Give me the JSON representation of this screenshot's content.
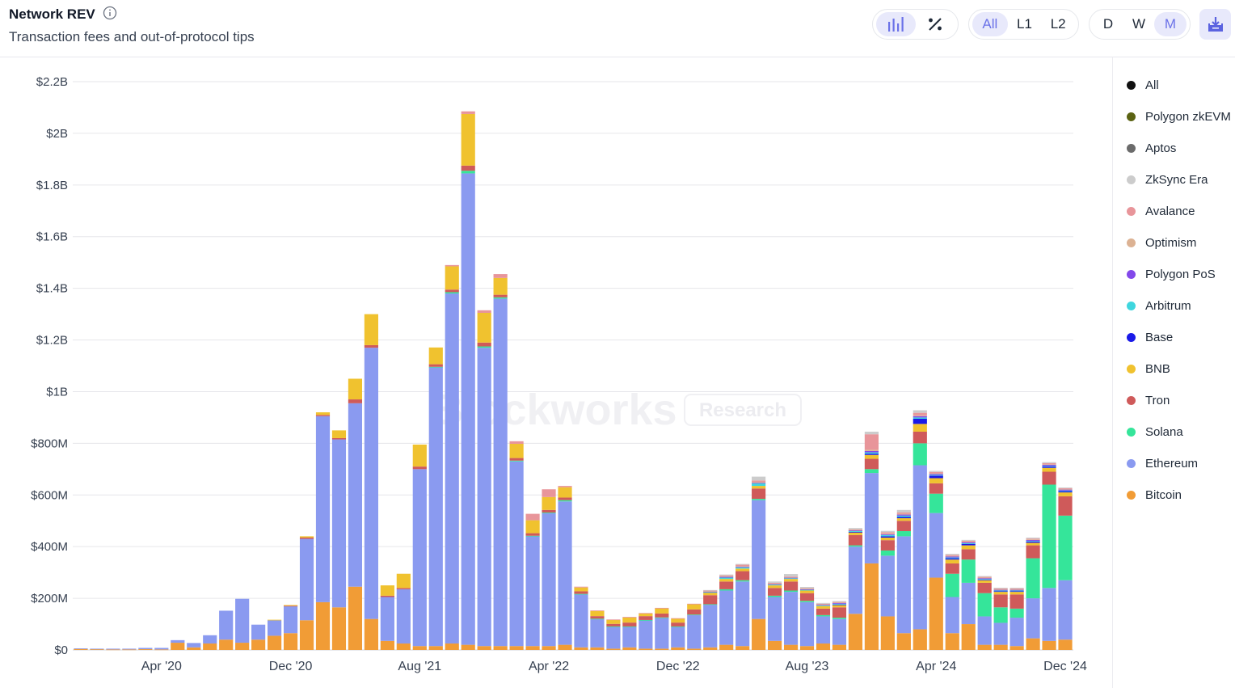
{
  "header": {
    "title": "Network REV",
    "subtitle": "Transaction fees and out-of-protocol tips"
  },
  "toolbar": {
    "chart_type_buttons": [
      {
        "icon": "bar-chart-icon",
        "active": true
      },
      {
        "icon": "percent-icon",
        "active": false
      }
    ],
    "layer_buttons": [
      {
        "label": "All",
        "active": true
      },
      {
        "label": "L1",
        "active": false
      },
      {
        "label": "L2",
        "active": false
      }
    ],
    "interval_buttons": [
      {
        "label": "D",
        "active": false
      },
      {
        "label": "W",
        "active": false
      },
      {
        "label": "M",
        "active": true
      }
    ],
    "download_icon": "download-icon"
  },
  "watermark": {
    "brand": "Blockworks",
    "tag": "Research"
  },
  "legend": [
    {
      "label": "All",
      "color": "#111111"
    },
    {
      "label": "Polygon zkEVM",
      "color": "#5b6313"
    },
    {
      "label": "Aptos",
      "color": "#6b6b6b"
    },
    {
      "label": "ZkSync Era",
      "color": "#cccccc"
    },
    {
      "label": "Avalance",
      "color": "#e8959a"
    },
    {
      "label": "Optimism",
      "color": "#dcb293"
    },
    {
      "label": "Polygon PoS",
      "color": "#8349ea"
    },
    {
      "label": "Arbitrum",
      "color": "#3fd6de"
    },
    {
      "label": "Base",
      "color": "#1a1ae8"
    },
    {
      "label": "BNB",
      "color": "#f0c22f"
    },
    {
      "label": "Tron",
      "color": "#cf5a5a"
    },
    {
      "label": "Solana",
      "color": "#35e59a"
    },
    {
      "label": "Ethereum",
      "color": "#8a9af0"
    },
    {
      "label": "Bitcoin",
      "color": "#f19c36"
    }
  ],
  "chart_data": {
    "type": "bar",
    "stacked": true,
    "ylim": [
      0,
      2.2
    ],
    "y_unit": "billion USD",
    "y_ticks": [
      "$0",
      "$200M",
      "$400M",
      "$600M",
      "$800M",
      "$1B",
      "$1.2B",
      "$1.4B",
      "$1.6B",
      "$1.8B",
      "$2B",
      "$2.2B"
    ],
    "x_ticks": [
      {
        "label": "Apr '20",
        "index": 5.5
      },
      {
        "label": "Dec '20",
        "index": 13.5
      },
      {
        "label": "Aug '21",
        "index": 21.5
      },
      {
        "label": "Apr '22",
        "index": 29.5
      },
      {
        "label": "Dec '22",
        "index": 37.5
      },
      {
        "label": "Aug '23",
        "index": 45.5
      },
      {
        "label": "Apr '24",
        "index": 53.5
      },
      {
        "label": "Dec '24",
        "index": 61.5
      }
    ],
    "grid": true,
    "legend_position": "right",
    "series": [
      {
        "name": "Bitcoin",
        "color": "#f19c36",
        "values": [
          0.005,
          0.003,
          0.002,
          0.002,
          0.003,
          0.002,
          0.028,
          0.01,
          0.025,
          0.04,
          0.028,
          0.04,
          0.055,
          0.065,
          0.115,
          0.185,
          0.165,
          0.245,
          0.12,
          0.035,
          0.025,
          0.015,
          0.015,
          0.025,
          0.02,
          0.015,
          0.015,
          0.015,
          0.015,
          0.015,
          0.02,
          0.01,
          0.01,
          0.005,
          0.01,
          0.005,
          0.005,
          0.01,
          0.005,
          0.01,
          0.02,
          0.015,
          0.12,
          0.035,
          0.02,
          0.015,
          0.025,
          0.02,
          0.14,
          0.335,
          0.13,
          0.065,
          0.08,
          0.28,
          0.065,
          0.1,
          0.02,
          0.02,
          0.015,
          0.045,
          0.035,
          0.04
        ]
      },
      {
        "name": "Ethereum",
        "color": "#8a9af0",
        "values": [
          0.001,
          0.002,
          0.003,
          0.003,
          0.005,
          0.006,
          0.01,
          0.017,
          0.032,
          0.112,
          0.17,
          0.058,
          0.06,
          0.105,
          0.315,
          0.72,
          0.65,
          0.71,
          1.05,
          0.17,
          0.21,
          0.685,
          1.08,
          1.355,
          1.825,
          1.155,
          1.345,
          0.715,
          0.425,
          0.515,
          0.555,
          0.205,
          0.11,
          0.085,
          0.08,
          0.11,
          0.12,
          0.08,
          0.13,
          0.165,
          0.21,
          0.25,
          0.46,
          0.17,
          0.205,
          0.17,
          0.105,
          0.1,
          0.26,
          0.35,
          0.235,
          0.375,
          0.635,
          0.25,
          0.14,
          0.16,
          0.11,
          0.085,
          0.11,
          0.155,
          0.205,
          0.23
        ]
      },
      {
        "name": "Solana",
        "color": "#35e59a",
        "values": [
          0,
          0,
          0,
          0,
          0,
          0,
          0,
          0,
          0,
          0,
          0,
          0,
          0,
          0,
          0,
          0,
          0,
          0,
          0,
          0,
          0,
          0,
          0.001,
          0.005,
          0.01,
          0.005,
          0.005,
          0.003,
          0.002,
          0.002,
          0.005,
          0.002,
          0.001,
          0.001,
          0.001,
          0.001,
          0.001,
          0.001,
          0.002,
          0.002,
          0.005,
          0.005,
          0.005,
          0.005,
          0.005,
          0.005,
          0.005,
          0.005,
          0.005,
          0.015,
          0.02,
          0.02,
          0.085,
          0.075,
          0.09,
          0.09,
          0.09,
          0.06,
          0.035,
          0.155,
          0.4,
          0.25
        ]
      },
      {
        "name": "Tron",
        "color": "#cf5a5a",
        "values": [
          0,
          0,
          0,
          0,
          0,
          0,
          0,
          0,
          0,
          0,
          0,
          0,
          0,
          0.001,
          0.005,
          0.005,
          0.005,
          0.015,
          0.01,
          0.005,
          0.005,
          0.01,
          0.01,
          0.01,
          0.02,
          0.015,
          0.01,
          0.01,
          0.01,
          0.01,
          0.01,
          0.01,
          0.01,
          0.01,
          0.015,
          0.015,
          0.015,
          0.015,
          0.02,
          0.035,
          0.03,
          0.035,
          0.04,
          0.03,
          0.035,
          0.03,
          0.025,
          0.04,
          0.04,
          0.04,
          0.04,
          0.04,
          0.045,
          0.04,
          0.04,
          0.04,
          0.04,
          0.05,
          0.055,
          0.05,
          0.05,
          0.075
        ]
      },
      {
        "name": "BNB",
        "color": "#f0c22f",
        "values": [
          0,
          0,
          0,
          0,
          0,
          0,
          0,
          0,
          0,
          0,
          0,
          0,
          0.002,
          0.003,
          0.005,
          0.01,
          0.03,
          0.08,
          0.12,
          0.04,
          0.055,
          0.085,
          0.065,
          0.09,
          0.2,
          0.115,
          0.065,
          0.055,
          0.05,
          0.05,
          0.04,
          0.015,
          0.02,
          0.015,
          0.02,
          0.01,
          0.02,
          0.015,
          0.02,
          0.01,
          0.01,
          0.01,
          0.01,
          0.01,
          0.01,
          0.01,
          0.01,
          0.01,
          0.01,
          0.015,
          0.01,
          0.01,
          0.03,
          0.02,
          0.015,
          0.015,
          0.01,
          0.01,
          0.01,
          0.01,
          0.015,
          0.015
        ]
      },
      {
        "name": "Base",
        "color": "#1a1ae8",
        "values": [
          0,
          0,
          0,
          0,
          0,
          0,
          0,
          0,
          0,
          0,
          0,
          0,
          0,
          0,
          0,
          0,
          0,
          0,
          0,
          0,
          0,
          0,
          0,
          0,
          0,
          0,
          0,
          0,
          0,
          0,
          0,
          0,
          0,
          0,
          0,
          0,
          0,
          0,
          0,
          0,
          0,
          0,
          0,
          0,
          0,
          0,
          0,
          0.001,
          0.002,
          0.005,
          0.005,
          0.005,
          0.02,
          0.01,
          0.005,
          0.005,
          0.003,
          0.003,
          0.003,
          0.005,
          0.005,
          0.005
        ]
      },
      {
        "name": "Arbitrum",
        "color": "#3fd6de",
        "values": [
          0,
          0,
          0,
          0,
          0,
          0,
          0,
          0,
          0,
          0,
          0,
          0,
          0,
          0,
          0,
          0,
          0,
          0,
          0,
          0,
          0,
          0,
          0,
          0,
          0,
          0,
          0,
          0,
          0,
          0,
          0,
          0,
          0,
          0,
          0,
          0,
          0,
          0,
          0,
          0.002,
          0.005,
          0.005,
          0.01,
          0.003,
          0.003,
          0.003,
          0.003,
          0.003,
          0.003,
          0.005,
          0.005,
          0.005,
          0.005,
          0.003,
          0.003,
          0.003,
          0.002,
          0.002,
          0.002,
          0.002,
          0.002,
          0.002
        ]
      },
      {
        "name": "Polygon PoS",
        "color": "#8349ea",
        "values": [
          0,
          0,
          0,
          0,
          0,
          0,
          0,
          0,
          0,
          0,
          0,
          0,
          0,
          0,
          0,
          0,
          0,
          0,
          0,
          0,
          0,
          0,
          0,
          0,
          0,
          0,
          0,
          0,
          0,
          0,
          0,
          0,
          0,
          0,
          0,
          0,
          0,
          0,
          0,
          0.002,
          0.003,
          0.002,
          0.002,
          0.002,
          0.002,
          0.002,
          0.002,
          0.003,
          0.003,
          0.005,
          0.003,
          0.004,
          0.005,
          0.004,
          0.004,
          0.004,
          0.003,
          0.003,
          0.003,
          0.004,
          0.005,
          0.004
        ]
      },
      {
        "name": "Optimism",
        "color": "#dcb293",
        "values": [
          0,
          0,
          0,
          0,
          0,
          0,
          0,
          0,
          0,
          0,
          0,
          0,
          0,
          0,
          0,
          0,
          0,
          0,
          0,
          0,
          0,
          0,
          0,
          0,
          0,
          0,
          0,
          0,
          0,
          0,
          0,
          0,
          0,
          0,
          0,
          0,
          0,
          0,
          0,
          0.002,
          0.003,
          0.003,
          0.004,
          0.002,
          0.002,
          0.002,
          0.002,
          0.002,
          0.002,
          0.005,
          0.003,
          0.003,
          0.003,
          0.002,
          0.002,
          0.002,
          0.002,
          0.002,
          0.002,
          0.002,
          0.002,
          0.002
        ]
      },
      {
        "name": "Avalance",
        "color": "#e8959a",
        "values": [
          0,
          0,
          0,
          0,
          0,
          0,
          0,
          0,
          0,
          0,
          0,
          0,
          0,
          0,
          0,
          0,
          0,
          0,
          0,
          0,
          0,
          0,
          0,
          0.005,
          0.01,
          0.01,
          0.015,
          0.01,
          0.025,
          0.03,
          0.005,
          0.003,
          0.002,
          0.002,
          0.002,
          0.002,
          0.002,
          0.002,
          0.002,
          0.002,
          0.003,
          0.005,
          0.005,
          0.003,
          0.002,
          0.002,
          0.002,
          0.002,
          0.002,
          0.06,
          0.005,
          0.005,
          0.01,
          0.005,
          0.004,
          0.004,
          0.003,
          0.003,
          0.003,
          0.003,
          0.004,
          0.003
        ]
      },
      {
        "name": "ZkSync Era",
        "color": "#cccccc",
        "values": [
          0,
          0,
          0,
          0,
          0,
          0,
          0,
          0,
          0,
          0,
          0,
          0,
          0,
          0,
          0,
          0,
          0,
          0,
          0,
          0,
          0,
          0,
          0,
          0,
          0,
          0,
          0,
          0,
          0,
          0,
          0,
          0,
          0,
          0,
          0,
          0,
          0,
          0,
          0,
          0.002,
          0.003,
          0.003,
          0.015,
          0.005,
          0.01,
          0.005,
          0.003,
          0.003,
          0.005,
          0.01,
          0.005,
          0.01,
          0.01,
          0.004,
          0.004,
          0.003,
          0.003,
          0.003,
          0.003,
          0.004,
          0.004,
          0.003
        ]
      },
      {
        "name": "Aptos",
        "color": "#6b6b6b",
        "values": [
          0,
          0,
          0,
          0,
          0,
          0,
          0,
          0,
          0,
          0,
          0,
          0,
          0,
          0,
          0,
          0,
          0,
          0,
          0,
          0,
          0,
          0,
          0,
          0,
          0,
          0,
          0,
          0,
          0,
          0,
          0,
          0,
          0,
          0,
          0,
          0,
          0,
          0,
          0,
          0,
          0,
          0,
          0,
          0,
          0,
          0,
          0,
          0,
          0,
          0,
          0,
          0,
          0,
          0,
          0,
          0,
          0,
          0,
          0,
          0,
          0,
          0
        ]
      },
      {
        "name": "Polygon zkEVM",
        "color": "#5b6313",
        "values": [
          0,
          0,
          0,
          0,
          0,
          0,
          0,
          0,
          0,
          0,
          0,
          0,
          0,
          0,
          0,
          0,
          0,
          0,
          0,
          0,
          0,
          0,
          0,
          0,
          0,
          0,
          0,
          0,
          0,
          0,
          0,
          0,
          0,
          0,
          0,
          0,
          0,
          0,
          0,
          0,
          0,
          0,
          0,
          0,
          0,
          0,
          0,
          0,
          0,
          0,
          0,
          0,
          0,
          0,
          0,
          0,
          0,
          0,
          0,
          0,
          0,
          0
        ]
      }
    ]
  }
}
